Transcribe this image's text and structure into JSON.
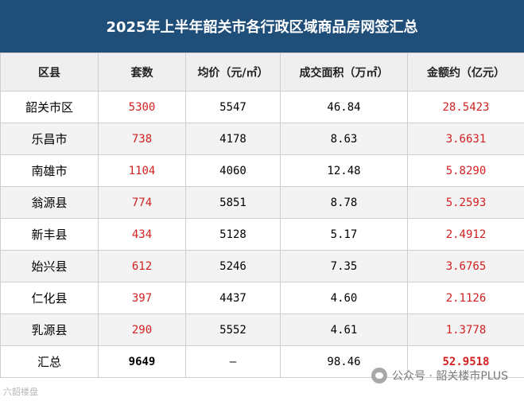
{
  "title": "2025年上半年韶关市各行政区域商品房网签汇总",
  "headers": [
    "区县",
    "套数",
    "均价（元/㎡）",
    "成交面积（万㎡）",
    "金额约（亿元）"
  ],
  "rows": [
    {
      "name": "韶关市区",
      "units": "5300",
      "price": "5547",
      "area": "46.84",
      "amount": "28.5423"
    },
    {
      "name": "乐昌市",
      "units": "738",
      "price": "4178",
      "area": "8.63",
      "amount": "3.6631"
    },
    {
      "name": "南雄市",
      "units": "1104",
      "price": "4060",
      "area": "12.48",
      "amount": "5.8290"
    },
    {
      "name": "翁源县",
      "units": "774",
      "price": "5851",
      "area": "8.78",
      "amount": "5.2593"
    },
    {
      "name": "新丰县",
      "units": "434",
      "price": "5128",
      "area": "5.17",
      "amount": "2.4912"
    },
    {
      "name": "始兴县",
      "units": "612",
      "price": "5246",
      "area": "7.35",
      "amount": "3.6765"
    },
    {
      "name": "仁化县",
      "units": "397",
      "price": "4437",
      "area": "4.60",
      "amount": "2.1126"
    },
    {
      "name": "乳源县",
      "units": "290",
      "price": "5552",
      "area": "4.61",
      "amount": "1.3778"
    }
  ],
  "total": {
    "name": "汇总",
    "units": "9649",
    "price": "—",
    "area": "98.46",
    "amount": "52.9518"
  },
  "watermark": "公众号 · 韶关楼市PLUS",
  "corner_mark": "六韶楼盘",
  "colors": {
    "header_bg": "#1f4e79",
    "highlight": "#d32020"
  }
}
